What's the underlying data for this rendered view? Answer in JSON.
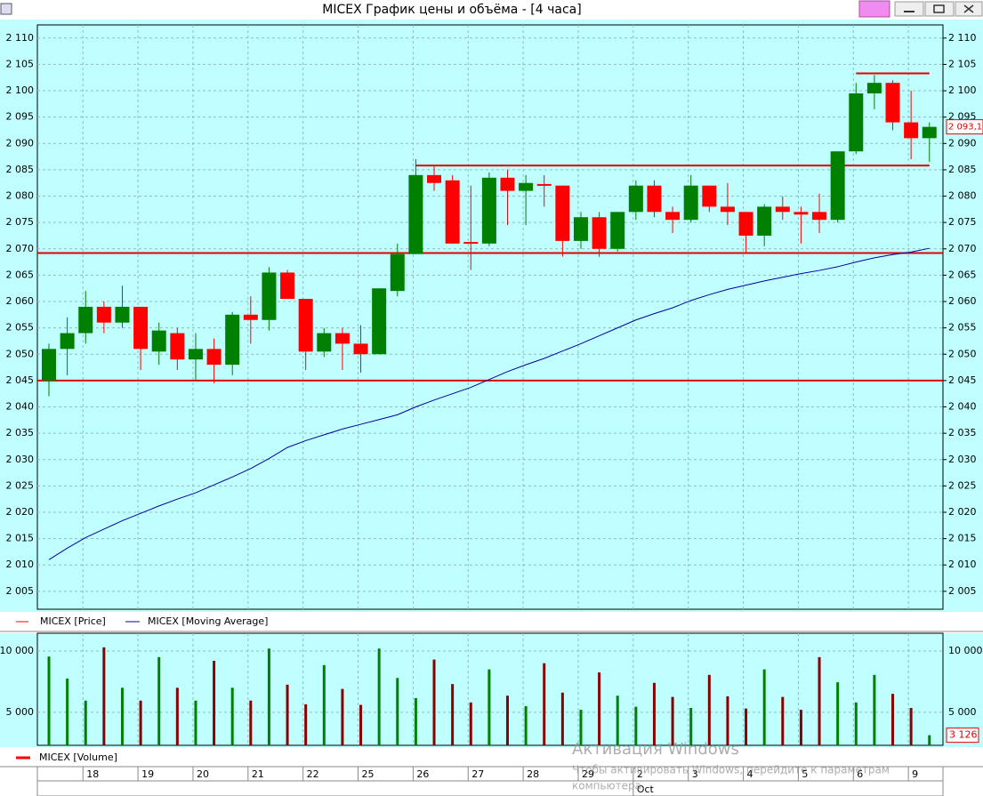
{
  "window": {
    "title": "MICEX График цены и объёма - [4 часа]"
  },
  "watermark": {
    "title": "Активация Windows",
    "lines": [
      "Чтобы активировать Windows, перейдите к параметрам",
      "компьютера."
    ]
  },
  "chart_data": {
    "type": "candlestick",
    "price_name": "MICEX [Price]",
    "up_color": "#008000",
    "down_color": "#ff0000",
    "open": [
      2045,
      2051,
      2054,
      2059,
      2056,
      2059,
      2050.5,
      2054,
      2049,
      2051,
      2048,
      2057.5,
      2056.5,
      2065.5,
      2060.5,
      2050.5,
      2054,
      2052,
      2050,
      2062,
      2069,
      2084,
      2083,
      2071.3,
      2071,
      2083.5,
      2081,
      2082.3,
      2082,
      2071.5,
      2076,
      2070,
      2077,
      2082,
      2077,
      2075.5,
      2082,
      2078,
      2077,
      2072.5,
      2078,
      2077,
      2077,
      2075.5,
      2088.5,
      2099.5,
      2101.5,
      2094,
      2091
    ],
    "high": [
      2052,
      2057,
      2062,
      2060,
      2063,
      2059,
      2056,
      2055,
      2054,
      2053,
      2058,
      2061,
      2066.5,
      2066,
      2060.5,
      2055,
      2055,
      2055.5,
      2062.5,
      2071,
      2087,
      2086,
      2084,
      2082,
      2084.5,
      2085,
      2084,
      2084,
      2082,
      2077,
      2077,
      2077,
      2083,
      2083,
      2078,
      2084,
      2082,
      2082.5,
      2077,
      2078.5,
      2080,
      2078,
      2080.5,
      2088.5,
      2101.5,
      2103,
      2102,
      2100,
      2094
    ],
    "low": [
      2042,
      2046,
      2052,
      2054,
      2055,
      2047,
      2048,
      2047,
      2045,
      2044.5,
      2046,
      2052,
      2054.5,
      2060.5,
      2047,
      2049.5,
      2047,
      2046.5,
      2050,
      2061,
      2069,
      2081,
      2071,
      2066,
      2070.5,
      2074.5,
      2074.5,
      2078,
      2068.5,
      2070,
      2068.5,
      2069.5,
      2075.5,
      2076,
      2073,
      2075,
      2077,
      2074.5,
      2069,
      2070.5,
      2075.5,
      2071,
      2073,
      2075,
      2088,
      2096.5,
      2092.5,
      2087,
      2086.5
    ],
    "close": [
      2051,
      2054,
      2059,
      2056,
      2059,
      2051,
      2054.5,
      2049,
      2051,
      2048,
      2057.5,
      2056.5,
      2065.5,
      2060.5,
      2050.5,
      2054,
      2052,
      2050,
      2062.5,
      2069,
      2084,
      2082.5,
      2071,
      2071.1,
      2083.5,
      2081,
      2082.5,
      2082,
      2071.5,
      2076,
      2070,
      2077,
      2082,
      2077,
      2075.5,
      2082,
      2078,
      2077,
      2072.5,
      2078,
      2077,
      2076.5,
      2075.5,
      2088.5,
      2099.5,
      2101.5,
      2094,
      2091,
      2093.15
    ],
    "ma": {
      "name": "MICEX [Moving Average]",
      "color": "#0000a0",
      "values": [
        2011,
        2013.2,
        2015.2,
        2016.8,
        2018.4,
        2019.8,
        2021.2,
        2022.5,
        2023.7,
        2025.2,
        2026.7,
        2028.3,
        2030.2,
        2032.3,
        2033.6,
        2034.7,
        2035.8,
        2036.7,
        2037.6,
        2038.5,
        2040,
        2041.3,
        2042.5,
        2043.7,
        2045.2,
        2046.7,
        2048,
        2049.2,
        2050.6,
        2052,
        2053.5,
        2055,
        2056.5,
        2057.7,
        2058.8,
        2060.2,
        2061.3,
        2062.3,
        2063.1,
        2063.9,
        2064.6,
        2065.3,
        2065.9,
        2066.6,
        2067.5,
        2068.3,
        2068.9,
        2069.4,
        2070.1
      ]
    },
    "volume": {
      "name": "MICEX [Volume]",
      "values": [
        9550,
        7750,
        5950,
        10300,
        7000,
        5950,
        9500,
        7000,
        5950,
        9200,
        7000,
        5950,
        10200,
        7250,
        5650,
        8850,
        6900,
        5600,
        10200,
        7800,
        6150,
        9300,
        7300,
        5800,
        8500,
        6350,
        5500,
        9000,
        6600,
        5200,
        8250,
        6350,
        5450,
        7400,
        6250,
        5350,
        8050,
        6300,
        5300,
        8500,
        6250,
        5200,
        9500,
        7450,
        5800,
        8050,
        6500,
        5350,
        3126
      ]
    },
    "ylim": [
      2001.6,
      2112.5
    ],
    "yticks": [
      {
        "value": 2005,
        "label": "2 005"
      },
      {
        "value": 2010,
        "label": "2 010"
      },
      {
        "value": 2015,
        "label": "2 015"
      },
      {
        "value": 2020,
        "label": "2 020"
      },
      {
        "value": 2025,
        "label": "2 025"
      },
      {
        "value": 2030,
        "label": "2 030"
      },
      {
        "value": 2035,
        "label": "2 035"
      },
      {
        "value": 2040,
        "label": "2 040"
      },
      {
        "value": 2045,
        "label": "2 045"
      },
      {
        "value": 2050,
        "label": "2 050"
      },
      {
        "value": 2055,
        "label": "2 055"
      },
      {
        "value": 2060,
        "label": "2 060"
      },
      {
        "value": 2065,
        "label": "2 065"
      },
      {
        "value": 2070,
        "label": "2 070"
      },
      {
        "value": 2075,
        "label": "2 075"
      },
      {
        "value": 2080,
        "label": "2 080"
      },
      {
        "value": 2085,
        "label": "2 085"
      },
      {
        "value": 2090,
        "label": "2 090"
      },
      {
        "value": 2095,
        "label": "2 095"
      },
      {
        "value": 2100,
        "label": "2 100"
      },
      {
        "value": 2105,
        "label": "2 105"
      },
      {
        "value": 2110,
        "label": "2 110"
      }
    ],
    "vol_ylim": [
      2300,
      11450
    ],
    "vol_yticks": [
      {
        "value": 5000,
        "label": "5 000"
      },
      {
        "value": 10000,
        "label": "10 000"
      }
    ],
    "grid": true,
    "levels": [
      {
        "value": 2045
      },
      {
        "value": 2069.2
      },
      {
        "value": 2085.8,
        "start": 20
      },
      {
        "value": 2103.3,
        "start": 44
      }
    ],
    "last_price": {
      "value": 2093.15,
      "label": "2 093,15"
    },
    "last_volume": {
      "value": 3126,
      "label": "3 126"
    },
    "days": [
      {
        "label": "18",
        "start": 2
      },
      {
        "label": "19",
        "start": 5
      },
      {
        "label": "20",
        "start": 8
      },
      {
        "label": "21",
        "start": 11
      },
      {
        "label": "22",
        "start": 14
      },
      {
        "label": "25",
        "start": 17
      },
      {
        "label": "26",
        "start": 20
      },
      {
        "label": "27",
        "start": 23
      },
      {
        "label": "28",
        "start": 26
      },
      {
        "label": "29",
        "start": 29
      },
      {
        "label": "2",
        "start": 32,
        "month": "Oct"
      },
      {
        "label": "3",
        "start": 35
      },
      {
        "label": "4",
        "start": 38
      },
      {
        "label": "5",
        "start": 41
      },
      {
        "label": "6",
        "start": 44
      },
      {
        "label": "9",
        "start": 47
      }
    ]
  }
}
